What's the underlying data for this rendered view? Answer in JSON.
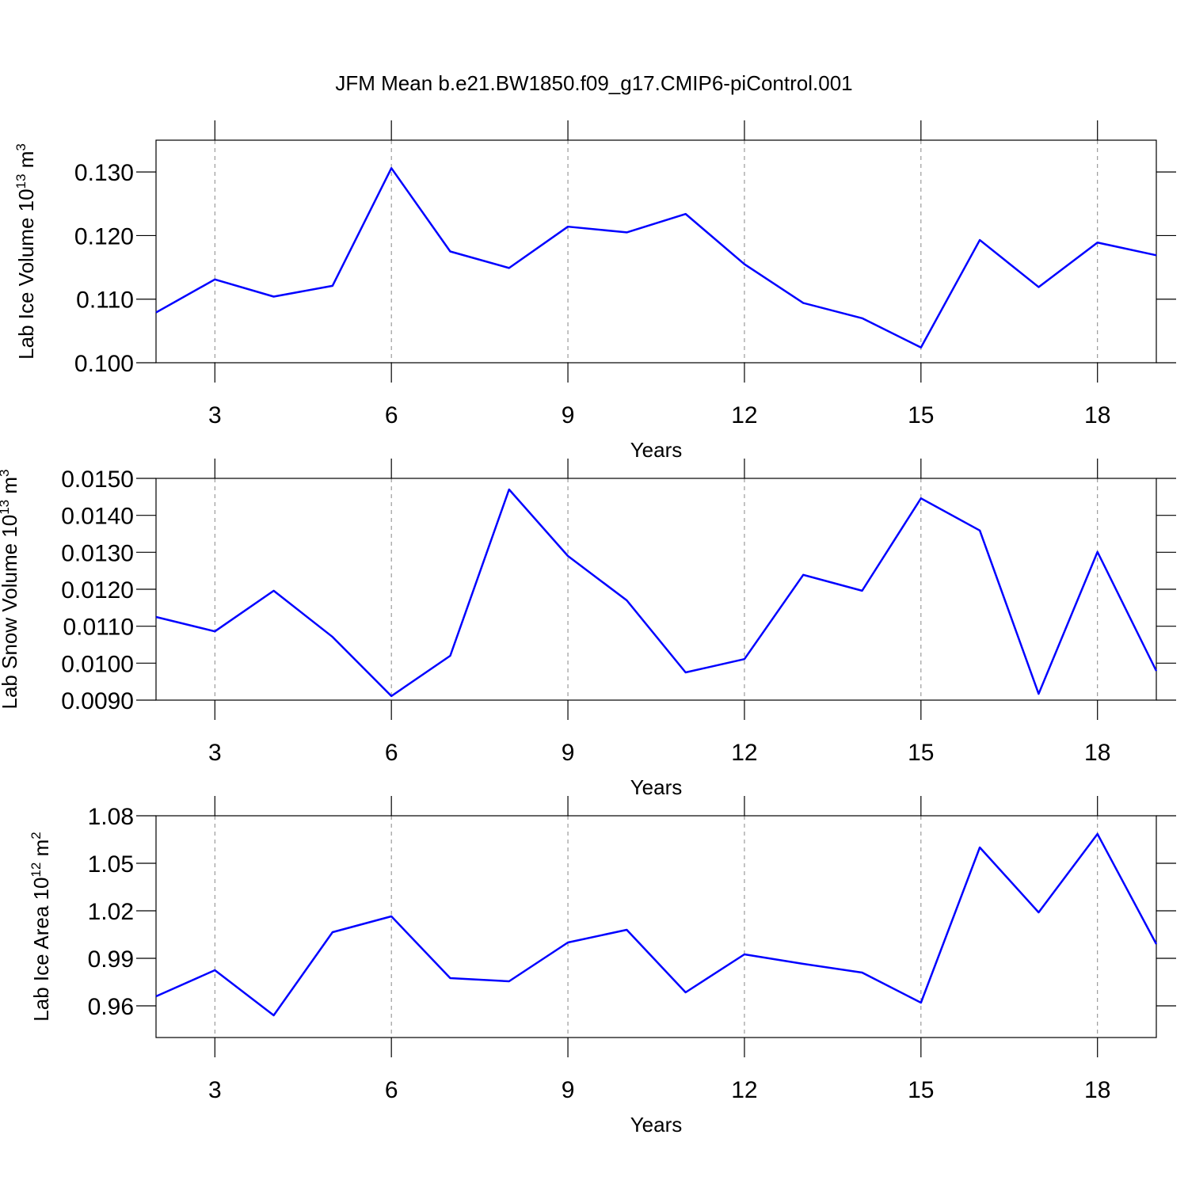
{
  "title": "JFM Mean b.e21.BW1850.f09_g17.CMIP6-piControl.001",
  "chart_data": [
    {
      "type": "line",
      "ylabel": [
        "Lab Ice Volume 10",
        "13",
        " m",
        "3"
      ],
      "xlabel": "Years",
      "x": [
        2,
        3,
        4,
        5,
        6,
        7,
        8,
        9,
        10,
        11,
        12,
        13,
        14,
        15,
        16,
        17,
        18,
        19
      ],
      "series": [
        {
          "color": "#0000ff",
          "values": [
            0.1079,
            0.1131,
            0.1104,
            0.1121,
            0.1306,
            0.1175,
            0.1149,
            0.1214,
            0.1205,
            0.1234,
            0.1155,
            0.1094,
            0.107,
            0.1024,
            0.1193,
            0.1119,
            0.1189,
            0.1169
          ]
        }
      ],
      "xlim": [
        2,
        19
      ],
      "xticks": [
        3,
        6,
        9,
        12,
        15,
        18
      ],
      "ylim": [
        0.1,
        0.135
      ],
      "yticks": [
        {
          "value": 0.1,
          "label": "0.100"
        },
        {
          "value": 0.11,
          "label": "0.110"
        },
        {
          "value": 0.12,
          "label": "0.120"
        },
        {
          "value": 0.13,
          "label": "0.130"
        }
      ],
      "xgrid": true
    },
    {
      "type": "line",
      "ylabel": [
        "Lab Snow Volume 10",
        "13",
        " m",
        "3"
      ],
      "xlabel": "Years",
      "x": [
        2,
        3,
        4,
        5,
        6,
        7,
        8,
        9,
        10,
        11,
        12,
        13,
        14,
        15,
        16,
        17,
        18,
        19
      ],
      "series": [
        {
          "color": "#0000ff",
          "values": [
            0.01125,
            0.01086,
            0.01196,
            0.01071,
            0.00911,
            0.0102,
            0.0147,
            0.0129,
            0.0117,
            0.00975,
            0.01011,
            0.01239,
            0.01196,
            0.01446,
            0.01359,
            0.00917,
            0.01301,
            0.00979
          ]
        }
      ],
      "xlim": [
        2,
        19
      ],
      "xticks": [
        3,
        6,
        9,
        12,
        15,
        18
      ],
      "ylim": [
        0.009,
        0.015
      ],
      "yticks": [
        {
          "value": 0.009,
          "label": "0.0090"
        },
        {
          "value": 0.01,
          "label": "0.0100"
        },
        {
          "value": 0.011,
          "label": "0.0110"
        },
        {
          "value": 0.012,
          "label": "0.0120"
        },
        {
          "value": 0.013,
          "label": "0.0130"
        },
        {
          "value": 0.014,
          "label": "0.0140"
        },
        {
          "value": 0.015,
          "label": "0.0150"
        }
      ],
      "xgrid": true
    },
    {
      "type": "line",
      "ylabel": [
        "Lab Ice Area 10",
        "12",
        " m",
        "2"
      ],
      "xlabel": "Years",
      "x": [
        2,
        3,
        4,
        5,
        6,
        7,
        8,
        9,
        10,
        11,
        12,
        13,
        14,
        15,
        16,
        17,
        18,
        19
      ],
      "series": [
        {
          "color": "#0000ff",
          "values": [
            0.966,
            0.9825,
            0.954,
            1.0065,
            1.0165,
            0.9775,
            0.9755,
            1.0,
            1.008,
            0.9685,
            0.9925,
            0.9865,
            0.981,
            0.962,
            1.06,
            1.019,
            1.0685,
            0.999
          ]
        }
      ],
      "xlim": [
        2,
        19
      ],
      "xticks": [
        3,
        6,
        9,
        12,
        15,
        18
      ],
      "ylim": [
        0.94,
        1.08
      ],
      "yticks": [
        0.96,
        0.99,
        1.02,
        1.05,
        1.08
      ],
      "xgrid": true
    }
  ]
}
